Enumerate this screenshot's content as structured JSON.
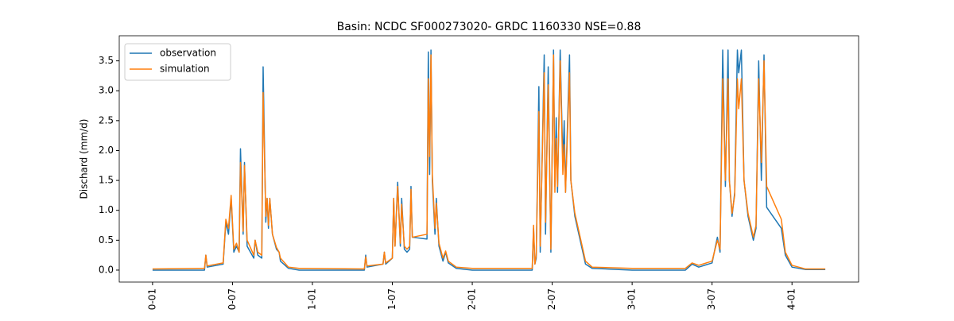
{
  "chart_data": {
    "type": "line",
    "title": "Basin: NCDC SF000273020- GRDC 1160330 NSE=0.88",
    "y_label": "Dischard (mm/d)",
    "legend": "upper left",
    "xlim": [
      -2.5,
      53.0
    ],
    "xticks": [
      {
        "value": 0,
        "label": "0-01"
      },
      {
        "value": 6,
        "label": "0-07"
      },
      {
        "value": 12,
        "label": "1-01"
      },
      {
        "value": 18,
        "label": "1-07"
      },
      {
        "value": 24,
        "label": "2-01"
      },
      {
        "value": 30,
        "label": "2-07"
      },
      {
        "value": 36,
        "label": "3-01"
      },
      {
        "value": 42,
        "label": "3-07"
      },
      {
        "value": 48,
        "label": "4-01"
      }
    ],
    "ylim": [
      -0.2,
      3.92
    ],
    "yticks": [
      {
        "value": 0,
        "label": "0.0"
      },
      0.5,
      {
        "value": 1,
        "label": "1.0"
      },
      1.5,
      {
        "value": 2,
        "label": "2.0"
      },
      2.5,
      {
        "value": 3,
        "label": "3.0"
      },
      3.5
    ],
    "x": [
      0,
      3.9,
      4.0,
      4.1,
      5.3,
      5.5,
      5.7,
      5.9,
      6.1,
      6.3,
      6.5,
      6.6,
      6.8,
      6.9,
      7.1,
      7.6,
      7.7,
      7.9,
      8.2,
      8.3,
      8.5,
      8.6,
      8.7,
      8.8,
      9.0,
      9.3,
      9.5,
      9.6,
      10.2,
      11,
      15.9,
      16.0,
      16.1,
      17.3,
      17.4,
      17.5,
      18.0,
      18.1,
      18.2,
      18.4,
      18.6,
      18.7,
      18.9,
      19.1,
      19.3,
      19.4,
      19.5,
      20.6,
      20.7,
      20.8,
      20.9,
      21.0,
      21.2,
      21.3,
      21.5,
      21.8,
      22.0,
      22.2,
      22.8,
      24,
      28.5,
      28.6,
      28.7,
      28.8,
      29.0,
      29.1,
      29.4,
      29.5,
      29.7,
      29.9,
      30.1,
      30.2,
      30.3,
      30.4,
      30.6,
      30.8,
      30.9,
      31.0,
      31.3,
      31.4,
      31.7,
      32.2,
      32.5,
      33.0,
      36,
      40,
      40.5,
      41.0,
      42.0,
      42.4,
      42.6,
      42.8,
      43.0,
      43.2,
      43.3,
      43.5,
      43.7,
      43.9,
      44.0,
      44.2,
      44.4,
      44.7,
      45.1,
      45.3,
      45.5,
      45.7,
      45.9,
      46.1,
      47.2,
      47.5,
      48.0,
      49,
      50.5
    ],
    "series": [
      {
        "name": "observation",
        "color": "#1f77b4",
        "values": [
          0,
          0,
          0.25,
          0.05,
          0.1,
          0.8,
          0.6,
          1.2,
          0.3,
          0.4,
          0.3,
          2.03,
          0.6,
          1.8,
          0.4,
          0.2,
          0.5,
          0.25,
          0.2,
          3.4,
          0.8,
          1.2,
          0.7,
          1.2,
          0.6,
          0.35,
          0.3,
          0.15,
          0.03,
          0,
          0,
          0.25,
          0.05,
          0.1,
          0.3,
          0.1,
          0.2,
          1.2,
          0.4,
          1.47,
          0.4,
          1.2,
          0.35,
          0.3,
          0.35,
          1.4,
          0.55,
          0.52,
          3.65,
          1.6,
          3.68,
          1.5,
          0.6,
          1.2,
          0.4,
          0.15,
          0.3,
          0.12,
          0.03,
          0,
          0,
          0.7,
          0.1,
          0.2,
          3.07,
          0.3,
          3.6,
          0.6,
          3.4,
          0.3,
          3.68,
          1.4,
          2.55,
          1.3,
          3.68,
          1.8,
          2.5,
          1.3,
          3.6,
          1.5,
          0.9,
          0.4,
          0.1,
          0.03,
          0,
          0,
          0.1,
          0.05,
          0.12,
          0.55,
          0.3,
          3.68,
          1.4,
          3.68,
          1.5,
          0.9,
          1.3,
          3.68,
          3.3,
          3.68,
          1.5,
          0.9,
          0.5,
          0.7,
          3.5,
          1.5,
          3.6,
          1.05,
          0.7,
          0.25,
          0.05,
          0.01,
          0.01
        ]
      },
      {
        "name": "simulation",
        "color": "#ff7f0e",
        "values": [
          0.02,
          0.03,
          0.25,
          0.07,
          0.12,
          0.85,
          0.7,
          1.25,
          0.35,
          0.45,
          0.3,
          1.8,
          0.65,
          1.75,
          0.5,
          0.25,
          0.5,
          0.3,
          0.25,
          2.97,
          0.9,
          1.2,
          0.75,
          1.2,
          0.6,
          0.38,
          0.3,
          0.2,
          0.05,
          0.03,
          0.02,
          0.22,
          0.07,
          0.1,
          0.3,
          0.12,
          0.2,
          1.2,
          0.4,
          1.4,
          0.45,
          1.1,
          0.4,
          0.35,
          0.4,
          1.35,
          0.55,
          0.6,
          3.2,
          1.9,
          3.6,
          1.6,
          0.7,
          1.12,
          0.45,
          0.2,
          0.32,
          0.15,
          0.05,
          0.03,
          0.03,
          0.75,
          0.1,
          0.25,
          2.65,
          0.4,
          3.3,
          0.8,
          3.1,
          0.35,
          3.6,
          1.3,
          2.2,
          1.4,
          3.5,
          1.6,
          2.1,
          1.3,
          3.3,
          1.5,
          0.95,
          0.45,
          0.15,
          0.05,
          0.03,
          0.03,
          0.12,
          0.08,
          0.15,
          0.5,
          0.35,
          3.2,
          1.5,
          3.2,
          1.5,
          0.95,
          1.25,
          3.2,
          2.7,
          3.2,
          1.5,
          0.95,
          0.55,
          0.75,
          3.2,
          1.8,
          3.5,
          1.4,
          0.85,
          0.3,
          0.08,
          0.02,
          0.02
        ]
      }
    ]
  }
}
